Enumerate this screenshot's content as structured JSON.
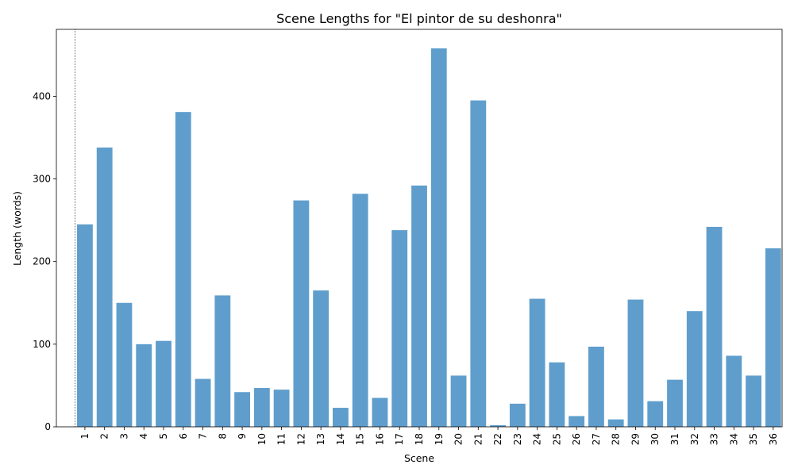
{
  "chart_data": {
    "type": "bar",
    "title": "Scene Lengths for \"El pintor de su deshonra\"",
    "xlabel": "Scene",
    "ylabel": "Length (words)",
    "categories": [
      "1",
      "2",
      "3",
      "4",
      "5",
      "6",
      "7",
      "8",
      "9",
      "10",
      "11",
      "12",
      "13",
      "14",
      "15",
      "16",
      "17",
      "18",
      "19",
      "20",
      "21",
      "22",
      "23",
      "24",
      "25",
      "26",
      "27",
      "28",
      "29",
      "30",
      "31",
      "32",
      "33",
      "34",
      "35",
      "36"
    ],
    "values": [
      245,
      338,
      150,
      100,
      104,
      381,
      58,
      159,
      42,
      47,
      45,
      274,
      165,
      23,
      282,
      35,
      238,
      292,
      458,
      62,
      395,
      2,
      28,
      155,
      78,
      13,
      97,
      9,
      154,
      31,
      57,
      140,
      242,
      86,
      62,
      216
    ],
    "ylim": [
      0,
      481
    ],
    "yticks": [
      0,
      100,
      200,
      300,
      400
    ],
    "x_tick_rotation": "vertical",
    "bar_color": "#5f9ecc",
    "reference_line": {
      "x": "1",
      "style": "dotted",
      "color": "#000000"
    },
    "grid": false,
    "legend": "none"
  }
}
